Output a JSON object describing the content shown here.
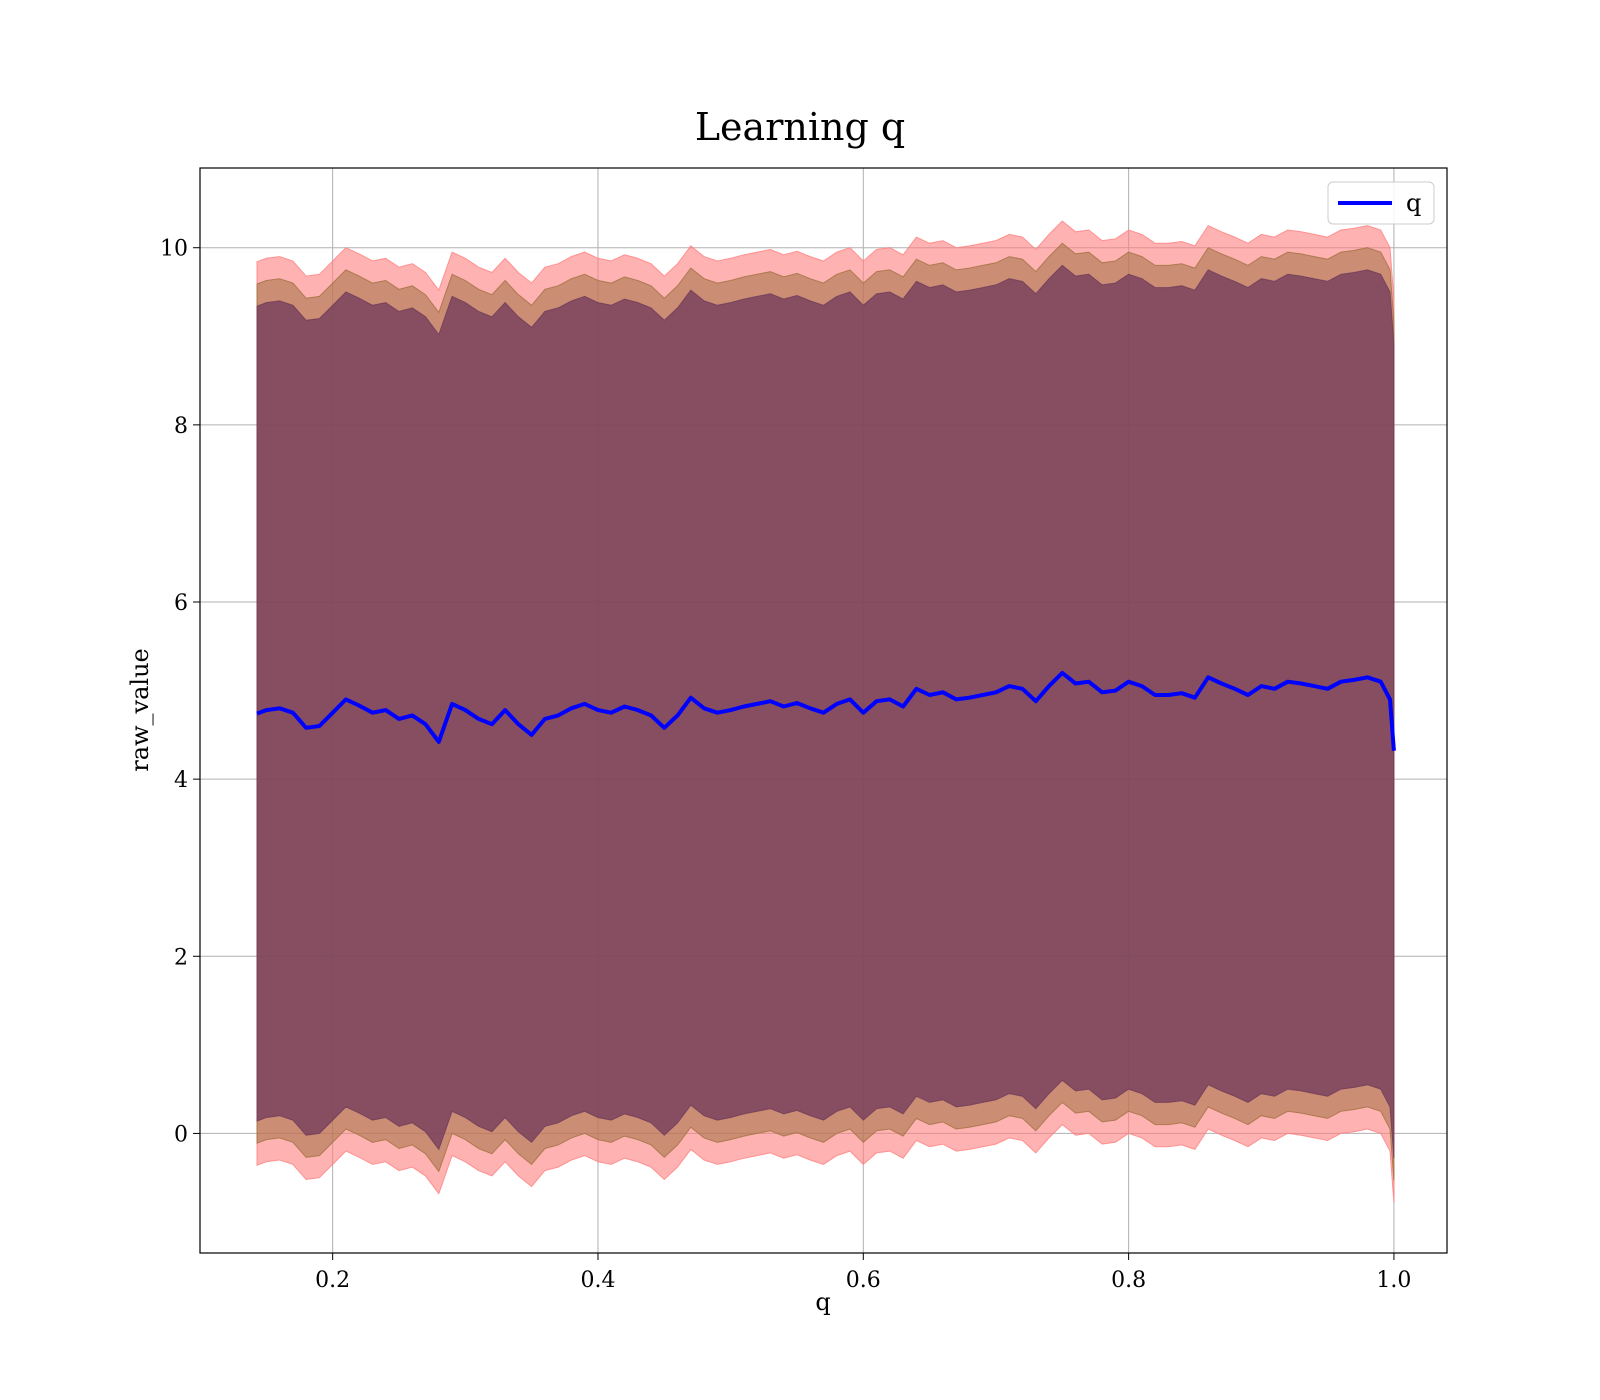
{
  "chart_data": {
    "type": "line",
    "title": "Learning q",
    "xlabel": "q",
    "ylabel": "raw_value",
    "xlim": [
      0.1,
      1.04
    ],
    "ylim": [
      -1.35,
      10.9
    ],
    "xticks": [
      0.2,
      0.4,
      0.6,
      0.8,
      1.0
    ],
    "xtick_labels": [
      "0.2",
      "0.4",
      "0.6",
      "0.8",
      "1.0"
    ],
    "yticks": [
      0,
      2,
      4,
      6,
      8,
      10
    ],
    "ytick_labels": [
      "0",
      "2",
      "4",
      "6",
      "8",
      "10"
    ],
    "grid": true,
    "legend_position": "top-right",
    "colors": {
      "line": "#0000ff",
      "band_outer": "#ff7f7f",
      "band_middle": "#a07040",
      "band_inner": "#6f3a5a"
    },
    "bands": [
      {
        "half_width": 5.1,
        "opacity": 0.6,
        "color_key": "band_outer"
      },
      {
        "half_width": 4.85,
        "opacity": 0.55,
        "color_key": "band_middle"
      },
      {
        "half_width": 4.6,
        "opacity": 0.75,
        "color_key": "band_inner"
      }
    ],
    "series": [
      {
        "name": "q",
        "x": [
          0.143,
          0.15,
          0.16,
          0.17,
          0.18,
          0.19,
          0.2,
          0.21,
          0.22,
          0.23,
          0.24,
          0.25,
          0.26,
          0.27,
          0.28,
          0.29,
          0.3,
          0.31,
          0.32,
          0.33,
          0.34,
          0.35,
          0.36,
          0.37,
          0.38,
          0.39,
          0.4,
          0.41,
          0.42,
          0.43,
          0.44,
          0.45,
          0.46,
          0.47,
          0.48,
          0.49,
          0.5,
          0.51,
          0.52,
          0.53,
          0.54,
          0.55,
          0.56,
          0.57,
          0.58,
          0.59,
          0.6,
          0.61,
          0.62,
          0.63,
          0.64,
          0.65,
          0.66,
          0.67,
          0.68,
          0.69,
          0.7,
          0.71,
          0.72,
          0.73,
          0.74,
          0.75,
          0.76,
          0.77,
          0.78,
          0.79,
          0.8,
          0.81,
          0.82,
          0.83,
          0.84,
          0.85,
          0.86,
          0.87,
          0.88,
          0.89,
          0.9,
          0.91,
          0.92,
          0.93,
          0.94,
          0.95,
          0.96,
          0.97,
          0.98,
          0.99,
          0.997,
          1.0
        ],
        "y": [
          4.74,
          4.78,
          4.8,
          4.75,
          4.58,
          4.6,
          4.75,
          4.9,
          4.83,
          4.75,
          4.78,
          4.68,
          4.72,
          4.62,
          4.42,
          4.85,
          4.78,
          4.68,
          4.62,
          4.78,
          4.62,
          4.5,
          4.68,
          4.72,
          4.8,
          4.85,
          4.78,
          4.75,
          4.82,
          4.78,
          4.72,
          4.58,
          4.72,
          4.92,
          4.8,
          4.75,
          4.78,
          4.82,
          4.85,
          4.88,
          4.82,
          4.86,
          4.8,
          4.75,
          4.85,
          4.9,
          4.75,
          4.88,
          4.9,
          4.82,
          5.02,
          4.95,
          4.98,
          4.9,
          4.92,
          4.95,
          4.98,
          5.05,
          5.02,
          4.88,
          5.05,
          5.2,
          5.08,
          5.1,
          4.98,
          5.0,
          5.1,
          5.05,
          4.95,
          4.95,
          4.97,
          4.92,
          5.15,
          5.08,
          5.02,
          4.95,
          5.05,
          5.02,
          5.1,
          5.08,
          5.05,
          5.02,
          5.1,
          5.12,
          5.15,
          5.1,
          4.9,
          4.32
        ]
      }
    ]
  }
}
